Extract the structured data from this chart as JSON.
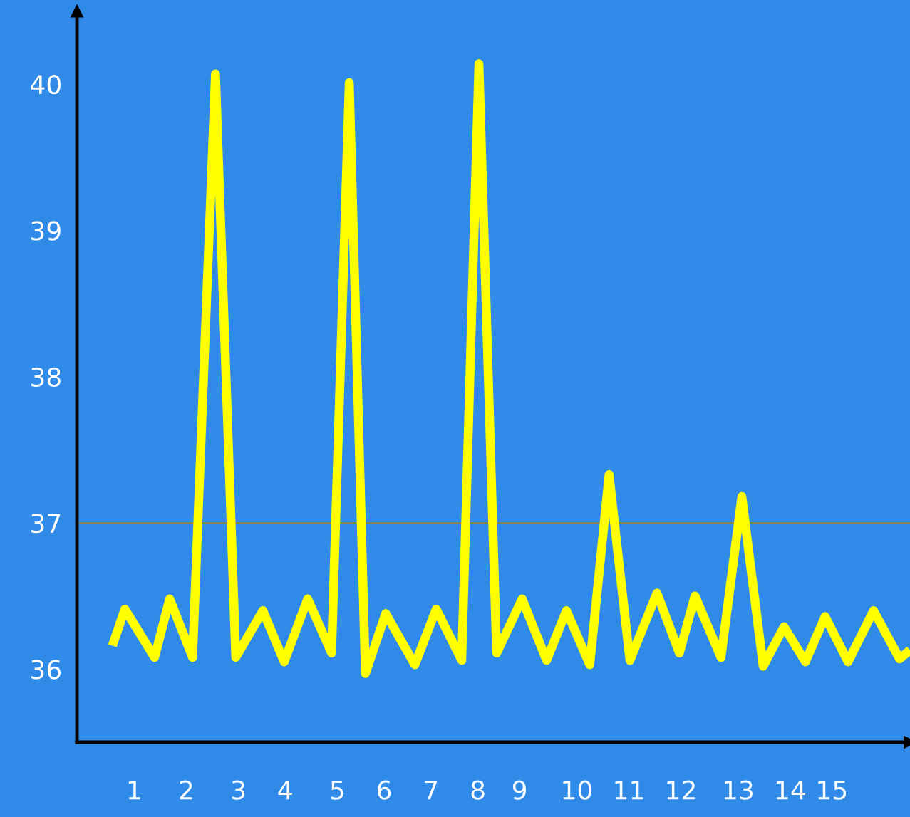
{
  "chart_data": {
    "type": "line",
    "x": [
      0.68,
      0.92,
      1.49,
      1.78,
      2.22,
      2.66,
      3.05,
      3.57,
      3.98,
      4.43,
      4.89,
      5.23,
      5.54,
      5.93,
      6.49,
      6.9,
      7.39,
      7.72,
      8.06,
      8.55,
      9.02,
      9.4,
      9.85,
      10.22,
      10.62,
      11.14,
      11.57,
      11.87,
      12.37,
      12.77,
      13.18,
      13.58,
      13.99,
      14.37,
      14.81,
      15.3,
      15.8,
      16.0
    ],
    "series": [
      {
        "color": "#ffff00",
        "values": [
          36.16,
          36.41,
          36.08,
          36.48,
          36.08,
          40.07,
          36.08,
          36.4,
          36.05,
          36.48,
          36.11,
          40.01,
          35.97,
          36.38,
          36.03,
          36.41,
          36.06,
          40.14,
          36.11,
          36.48,
          36.06,
          36.4,
          36.03,
          37.33,
          36.06,
          36.52,
          36.11,
          36.5,
          36.08,
          37.18,
          36.02,
          36.29,
          36.05,
          36.36,
          36.05,
          36.4,
          36.07,
          36.13
        ]
      }
    ],
    "xlim": [
      0,
      16
    ],
    "ylim": [
      35.5,
      40.5
    ],
    "xticks": [
      {
        "value": 1.1,
        "label": "1"
      },
      {
        "value": 2.1,
        "label": "2"
      },
      {
        "value": 3.1,
        "label": "3"
      },
      {
        "value": 4.0,
        "label": "4"
      },
      {
        "value": 5.0,
        "label": "5"
      },
      {
        "value": 5.9,
        "label": "6"
      },
      {
        "value": 6.8,
        "label": "7"
      },
      {
        "value": 7.7,
        "label": "8"
      },
      {
        "value": 8.5,
        "label": "9"
      },
      {
        "value": 9.6,
        "label": "10"
      },
      {
        "value": 10.6,
        "label": "11"
      },
      {
        "value": 11.6,
        "label": "12"
      },
      {
        "value": 12.7,
        "label": "13"
      },
      {
        "value": 13.7,
        "label": "14"
      },
      {
        "value": 14.5,
        "label": "15"
      }
    ],
    "yticks": [
      36,
      37,
      38,
      39,
      40
    ],
    "ref_lines": [
      {
        "axis": "y",
        "value": 37,
        "color": "#8a8a3a"
      }
    ],
    "grid": false,
    "legend": false,
    "marker": "none",
    "line_style": "solid"
  }
}
